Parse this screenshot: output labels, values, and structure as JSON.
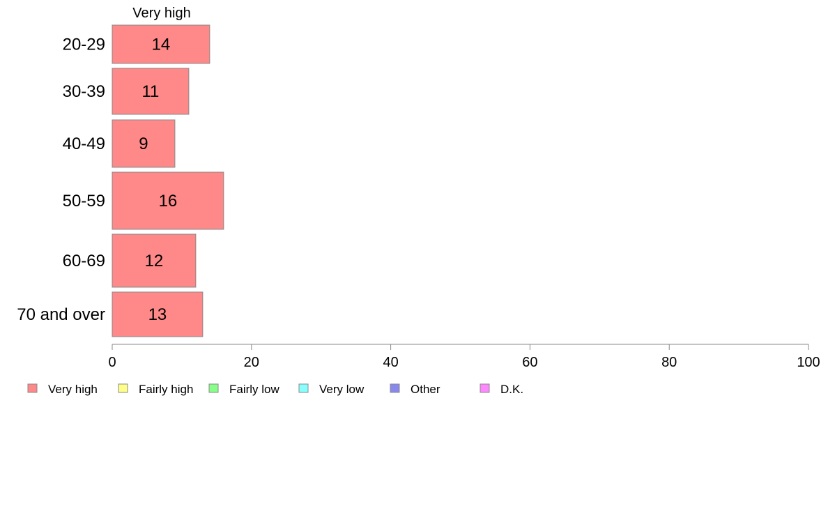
{
  "chart_data": {
    "type": "bar",
    "orientation": "horizontal",
    "series_title": "Very high",
    "categories": [
      "20-29",
      "30-39",
      "40-49",
      "50-59",
      "60-69",
      "70 and over"
    ],
    "series": [
      {
        "name": "Very high",
        "values": [
          14,
          11,
          9,
          16,
          12,
          13
        ]
      }
    ],
    "xlim": [
      0,
      100
    ],
    "xticks": [
      0,
      20,
      40,
      60,
      80,
      100
    ],
    "grid": false,
    "legend_position": "bottom",
    "legend": [
      {
        "label": "Very high",
        "color": "#ff8888"
      },
      {
        "label": "Fairly high",
        "color": "#ffff88"
      },
      {
        "label": "Fairly low",
        "color": "#88ff88"
      },
      {
        "label": "Very low",
        "color": "#88ffff"
      },
      {
        "label": "Other",
        "color": "#8888ee"
      },
      {
        "label": "D.K.",
        "color": "#ff88ff"
      }
    ],
    "bar_color": "#ff8888",
    "bar_stroke": "#888888",
    "axis_color": "#888888"
  }
}
